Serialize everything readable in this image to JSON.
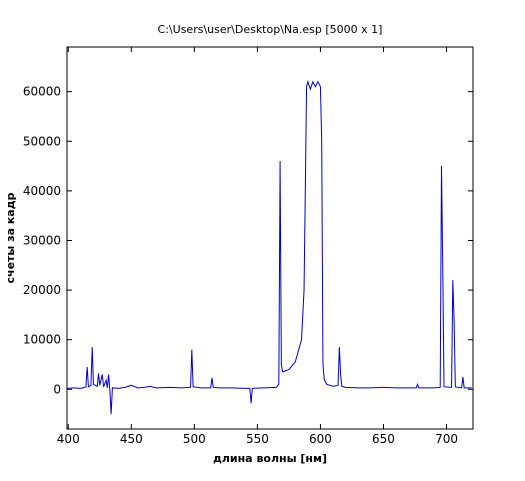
{
  "chart_data": {
    "type": "line",
    "title": "C:\\Users\\user\\Desktop\\Na.esp [5000 x 1]",
    "x_label": "длина волны [нм]",
    "y_label": "счеты за кадр",
    "color": "#0000cd",
    "x": [
      399,
      405,
      410,
      414,
      415,
      416,
      418,
      419,
      420,
      423,
      424,
      425,
      427,
      428,
      430,
      431,
      432,
      433,
      434,
      435,
      440,
      445,
      450,
      455,
      460,
      465,
      470,
      480,
      490,
      497,
      498,
      499,
      505,
      513,
      514,
      515,
      520,
      530,
      540,
      544,
      545,
      546,
      555,
      565,
      567,
      568,
      569,
      570,
      575,
      580,
      585,
      587,
      588,
      589,
      590,
      592,
      594,
      596,
      598,
      600,
      601,
      602,
      603,
      605,
      610,
      614,
      615,
      616,
      617,
      620,
      630,
      640,
      650,
      660,
      670,
      676,
      677,
      678,
      690,
      695,
      696,
      697,
      698,
      704,
      705,
      706,
      707,
      712,
      713,
      714,
      720
    ],
    "values": [
      200,
      300,
      200,
      500,
      4500,
      500,
      800,
      8500,
      1000,
      600,
      3200,
      800,
      3000,
      500,
      1800,
      300,
      3000,
      -200,
      -5000,
      300,
      200,
      400,
      800,
      300,
      400,
      600,
      300,
      400,
      300,
      400,
      8000,
      500,
      300,
      300,
      2300,
      400,
      300,
      300,
      200,
      200,
      -2800,
      200,
      300,
      400,
      1000,
      46000,
      5000,
      3500,
      4000,
      5500,
      10000,
      20000,
      40000,
      61000,
      62000,
      60500,
      62000,
      61000,
      62000,
      61000,
      50000,
      5000,
      2000,
      1000,
      600,
      800,
      8500,
      3000,
      600,
      400,
      300,
      300,
      400,
      300,
      300,
      300,
      1000,
      300,
      300,
      400,
      45000,
      25000,
      500,
      400,
      22000,
      14000,
      500,
      300,
      2500,
      300,
      300
    ],
    "xlim": [
      399,
      721
    ],
    "ylim": [
      -8000,
      69000
    ],
    "xticks": [
      400,
      450,
      500,
      550,
      600,
      650,
      700
    ],
    "yticks": [
      0,
      10000,
      20000,
      30000,
      40000,
      50000,
      60000
    ]
  }
}
